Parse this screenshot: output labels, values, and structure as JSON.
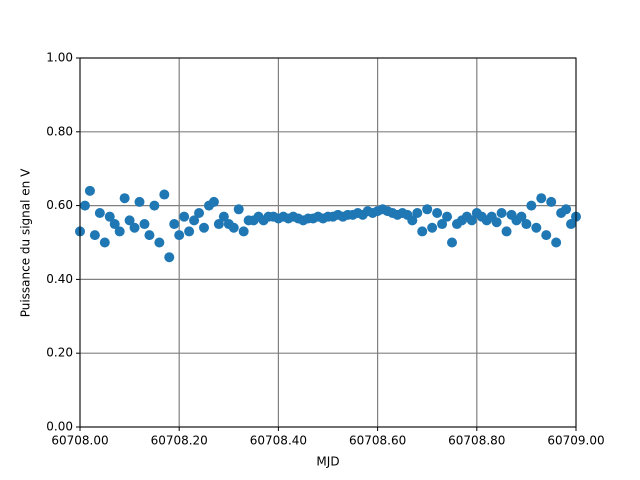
{
  "chart_data": {
    "type": "scatter",
    "xlabel": "MJD",
    "ylabel": "Puissance du signal en V",
    "color": "#1f77b4",
    "grid": true,
    "x": [
      60708.0,
      60708.01,
      60708.02,
      60708.03,
      60708.04,
      60708.05,
      60708.06,
      60708.07,
      60708.08,
      60708.09,
      60708.1,
      60708.11,
      60708.12,
      60708.13,
      60708.14,
      60708.15,
      60708.16,
      60708.17,
      60708.18,
      60708.19,
      60708.2,
      60708.21,
      60708.22,
      60708.23,
      60708.24,
      60708.25,
      60708.26,
      60708.27,
      60708.28,
      60708.29,
      60708.3,
      60708.31,
      60708.32,
      60708.33,
      60708.34,
      60708.35,
      60708.36,
      60708.37,
      60708.38,
      60708.39,
      60708.4,
      60708.41,
      60708.42,
      60708.43,
      60708.44,
      60708.45,
      60708.46,
      60708.47,
      60708.48,
      60708.49,
      60708.5,
      60708.51,
      60708.52,
      60708.53,
      60708.54,
      60708.55,
      60708.56,
      60708.57,
      60708.58,
      60708.59,
      60708.6,
      60708.61,
      60708.62,
      60708.63,
      60708.64,
      60708.65,
      60708.66,
      60708.67,
      60708.68,
      60708.69,
      60708.7,
      60708.71,
      60708.72,
      60708.73,
      60708.74,
      60708.75,
      60708.76,
      60708.77,
      60708.78,
      60708.79,
      60708.8,
      60708.81,
      60708.82,
      60708.83,
      60708.84,
      60708.85,
      60708.86,
      60708.87,
      60708.88,
      60708.89,
      60708.9,
      60708.91,
      60708.92,
      60708.93,
      60708.94,
      60708.95,
      60708.96,
      60708.97,
      60708.98,
      60708.99,
      60709.0
    ],
    "values": [
      0.53,
      0.6,
      0.64,
      0.52,
      0.58,
      0.5,
      0.57,
      0.55,
      0.53,
      0.62,
      0.56,
      0.54,
      0.61,
      0.55,
      0.52,
      0.6,
      0.5,
      0.63,
      0.46,
      0.55,
      0.52,
      0.57,
      0.53,
      0.56,
      0.58,
      0.54,
      0.6,
      0.61,
      0.55,
      0.57,
      0.55,
      0.54,
      0.59,
      0.53,
      0.56,
      0.56,
      0.57,
      0.56,
      0.57,
      0.57,
      0.565,
      0.57,
      0.565,
      0.57,
      0.565,
      0.56,
      0.565,
      0.565,
      0.57,
      0.565,
      0.57,
      0.57,
      0.575,
      0.57,
      0.575,
      0.575,
      0.58,
      0.575,
      0.585,
      0.58,
      0.585,
      0.59,
      0.585,
      0.58,
      0.575,
      0.58,
      0.575,
      0.56,
      0.58,
      0.53,
      0.59,
      0.54,
      0.58,
      0.55,
      0.57,
      0.5,
      0.55,
      0.56,
      0.57,
      0.56,
      0.58,
      0.57,
      0.56,
      0.57,
      0.555,
      0.58,
      0.53,
      0.575,
      0.56,
      0.57,
      0.55,
      0.6,
      0.54,
      0.62,
      0.52,
      0.61,
      0.5,
      0.58,
      0.59,
      0.55,
      0.57
    ],
    "xlim": [
      60708.0,
      60709.0
    ],
    "xticks": [
      {
        "value": 60708.0,
        "label": "60708.00"
      },
      {
        "value": 60708.2,
        "label": "60708.20"
      },
      {
        "value": 60708.4,
        "label": "60708.40"
      },
      {
        "value": 60708.6,
        "label": "60708.60"
      },
      {
        "value": 60708.8,
        "label": "60708.80"
      },
      {
        "value": 60709.0,
        "label": "60709.00"
      }
    ],
    "ylim": [
      0,
      1
    ],
    "yticks": [
      {
        "value": 0,
        "label": "0.00"
      },
      {
        "value": 0.2,
        "label": "0.20"
      },
      {
        "value": 0.4,
        "label": "0.40"
      },
      {
        "value": 0.6,
        "label": "0.60"
      },
      {
        "value": 0.8,
        "label": "0.80"
      },
      {
        "value": 1,
        "label": "1.00"
      }
    ]
  }
}
